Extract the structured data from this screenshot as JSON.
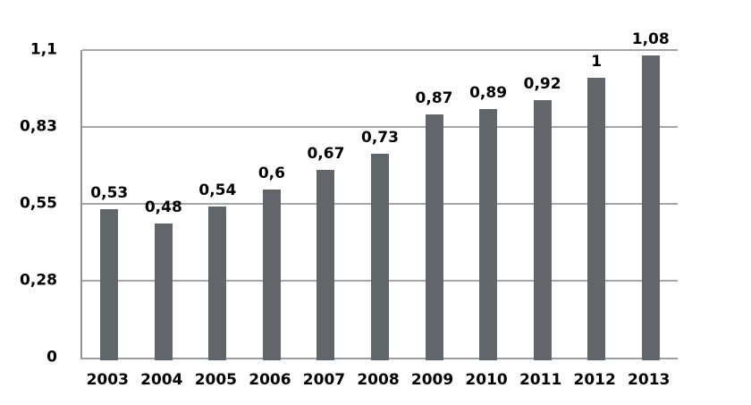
{
  "chart_data": {
    "type": "bar",
    "title": "",
    "xlabel": "",
    "ylabel": "",
    "categories": [
      "2003",
      "2004",
      "2005",
      "2006",
      "2007",
      "2008",
      "2009",
      "2010",
      "2011",
      "2012",
      "2013"
    ],
    "values": [
      0.53,
      0.48,
      0.54,
      0.6,
      0.67,
      0.73,
      0.87,
      0.89,
      0.92,
      1,
      1.08
    ],
    "bar_labels": [
      "0,53",
      "0,48",
      "0,54",
      "0,6",
      "0,67",
      "0,73",
      "0,87",
      "0,89",
      "0,92",
      "1",
      "1,08"
    ],
    "ylim": [
      0,
      1.1
    ],
    "y_ticks": [
      {
        "value": 0,
        "label": "0"
      },
      {
        "value": 0.275,
        "label": "0,28"
      },
      {
        "value": 0.55,
        "label": "0,55"
      },
      {
        "value": 0.825,
        "label": "0,83"
      },
      {
        "value": 1.1,
        "label": "1,1"
      }
    ],
    "grid": true,
    "legend": false,
    "decimal_separator": ",",
    "colors": {
      "bar": "#60666a",
      "gridline": "#a6a6a6",
      "axis": "#8f9496",
      "text": "#000000",
      "background": "#ffffff"
    }
  }
}
